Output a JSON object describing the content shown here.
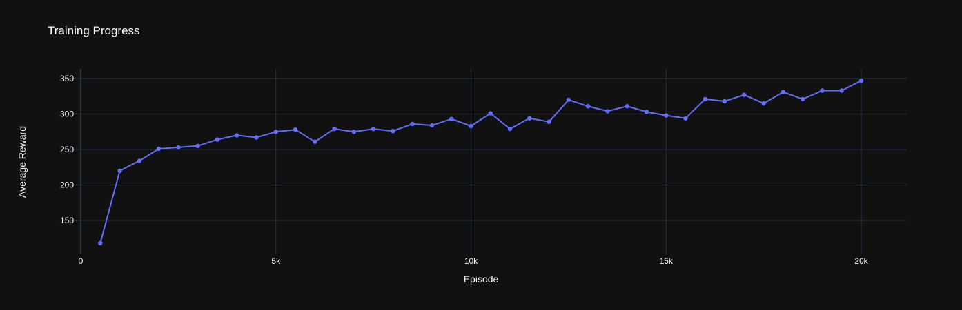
{
  "chart_data": {
    "type": "line",
    "title": "Training Progress",
    "xlabel": "Episode",
    "ylabel": "Average Reward",
    "xlim": [
      -1000,
      21200
    ],
    "ylim": [
      103,
      364
    ],
    "xticks": [
      0,
      5000,
      10000,
      15000,
      20000
    ],
    "xtick_labels": [
      "0",
      "5k",
      "10k",
      "15k",
      "20k"
    ],
    "yticks": [
      150,
      200,
      250,
      300,
      350
    ],
    "yvgrid": [
      0,
      5000,
      10000,
      15000,
      20000
    ],
    "grid": true,
    "colors": {
      "background": "#111111",
      "grid": "#283442",
      "line": "#636efa",
      "text": "#f2f5fa"
    },
    "series": [
      {
        "x": [
          500,
          1000,
          1500,
          2000,
          2500,
          3000,
          3500,
          4000,
          4500,
          5000,
          5500,
          6000,
          6500,
          7000,
          7500,
          8000,
          8500,
          9000,
          9500,
          10000,
          10500,
          11000,
          11500,
          12000,
          12500,
          13000,
          13500,
          14000,
          14500,
          15000,
          15500,
          16000,
          16500,
          17000,
          17500,
          18000,
          18500,
          19000,
          19500,
          20000
        ],
        "y": [
          118,
          220,
          234,
          251,
          253,
          255,
          264,
          270,
          267,
          275,
          278,
          261,
          279,
          275,
          279,
          276,
          286,
          284,
          293,
          283,
          301,
          279,
          294,
          289,
          320,
          311,
          304,
          311,
          303,
          298,
          294,
          321,
          318,
          327,
          315,
          331,
          321,
          333,
          333,
          347
        ]
      }
    ]
  }
}
